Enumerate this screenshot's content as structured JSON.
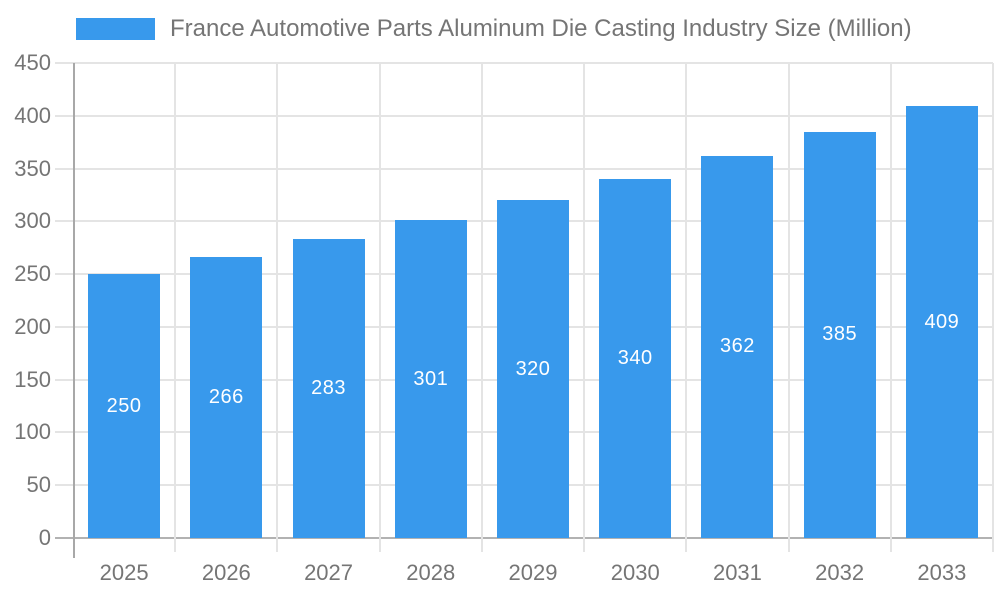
{
  "legend": {
    "label": "France Automotive Parts Aluminum Die Casting Industry Size (Million)"
  },
  "chart_data": {
    "type": "bar",
    "title": "France Automotive Parts Aluminum Die Casting Industry Size (Million)",
    "categories": [
      "2025",
      "2026",
      "2027",
      "2028",
      "2029",
      "2030",
      "2031",
      "2032",
      "2033"
    ],
    "values": [
      250,
      266,
      283,
      301,
      320,
      340,
      362,
      385,
      409
    ],
    "series": [
      {
        "name": "France Automotive Parts Aluminum Die Casting Industry Size (Million)",
        "values": [
          250,
          266,
          283,
          301,
          320,
          340,
          362,
          385,
          409
        ]
      }
    ],
    "xlabel": "",
    "ylabel": "",
    "ylim": [
      0,
      450
    ],
    "ytick_step": 50,
    "ytick_labels": [
      "0",
      "50",
      "100",
      "150",
      "200",
      "250",
      "300",
      "350",
      "400",
      "450"
    ],
    "grid": true,
    "legend_position": "top",
    "value_labels_shown": true,
    "value_label_position": "center-of-bar"
  },
  "colors": {
    "bar": "#3899EC",
    "value_label_text": "#FFFFFF",
    "axis_text": "#757575",
    "title_text": "#757575",
    "gridline": "#E4E4E4",
    "axis_line": "#A8A8A8",
    "baseline": "#B2B2B2",
    "background": "#FFFFFF"
  }
}
